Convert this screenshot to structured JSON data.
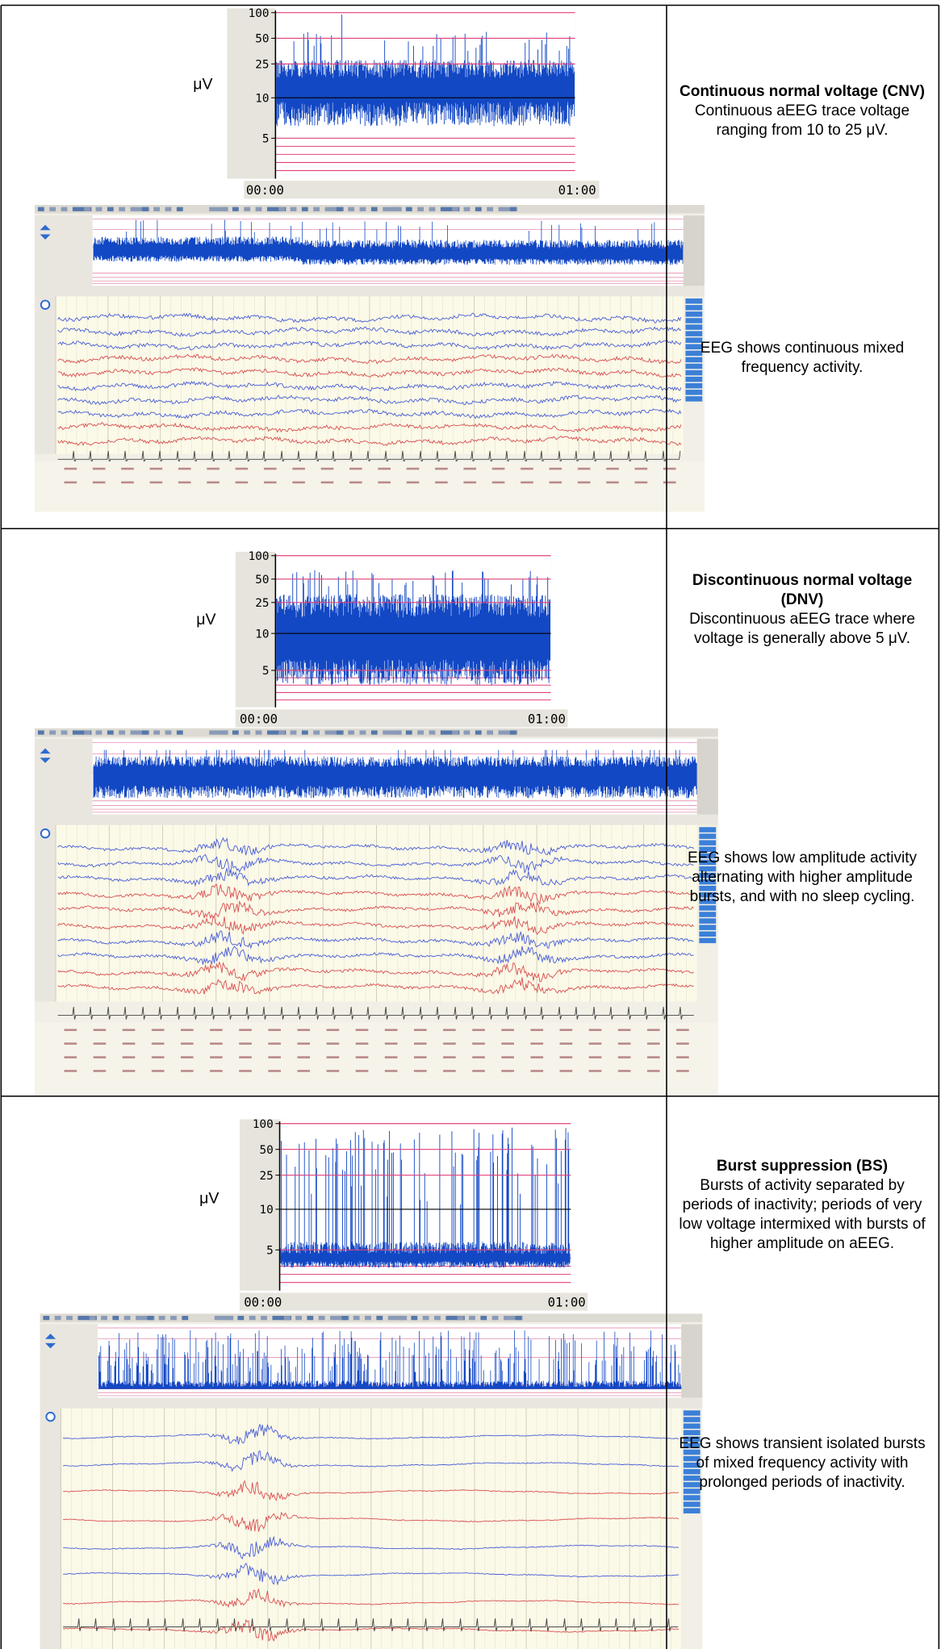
{
  "rows": [
    {
      "aeeg": {
        "unit": "μV",
        "yticks": [
          100,
          50,
          25,
          10,
          5
        ],
        "start": "00:00",
        "end": "01:00"
      },
      "title": "Continuous normal voltage (CNV)",
      "description": "Continuous aEEG trace voltage ranging from 10 to 25 μV.",
      "eeg_description": "EEG shows continuous mixed frequency activity."
    },
    {
      "aeeg": {
        "unit": "μV",
        "yticks": [
          100,
          50,
          25,
          10,
          5
        ],
        "start": "00:00",
        "end": "01:00"
      },
      "title": "Discontinuous normal voltage (DNV)",
      "description": "Discontinuous aEEG trace where voltage is generally above 5 μV.",
      "eeg_description": "EEG shows low amplitude activity alternating with higher amplitude bursts, and with no sleep cycling."
    },
    {
      "aeeg": {
        "unit": "μV",
        "yticks": [
          100,
          50,
          25,
          10,
          5
        ],
        "start": "00:00",
        "end": "01:00"
      },
      "title": "Burst suppression (BS)",
      "description": "Bursts of activity separated by periods of inactivity; periods of very low voltage intermixed with bursts of higher amplitude on aEEG.",
      "eeg_description": "EEG shows transient isolated bursts of mixed frequency activity with prolonged periods of inactivity."
    }
  ]
}
